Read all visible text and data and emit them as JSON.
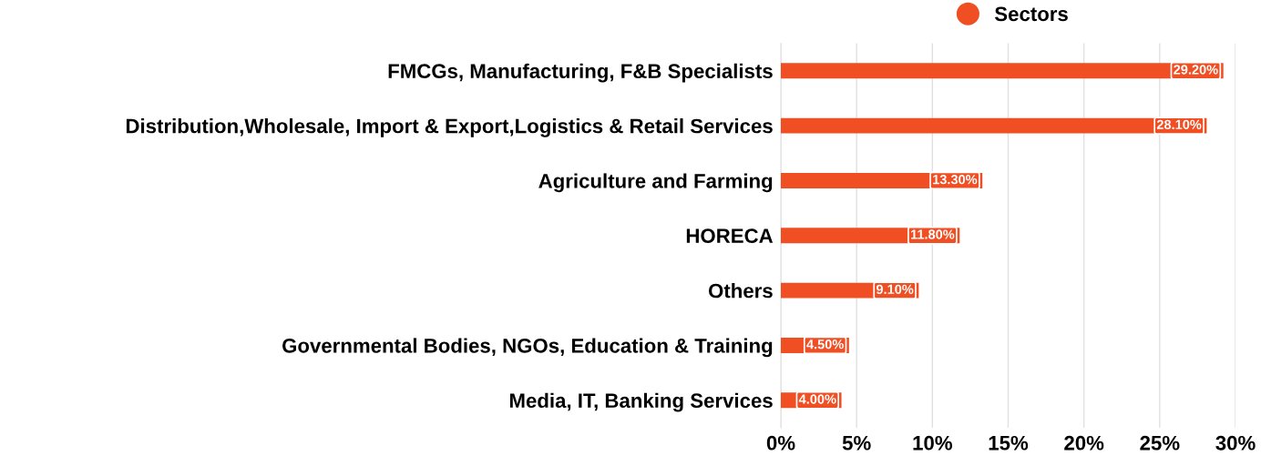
{
  "chart_data": {
    "type": "bar",
    "orientation": "horizontal",
    "categories": [
      "FMCGs, Manufacturing, F&B Specialists",
      "Distribution,Wholesale, Import & Export,Logistics & Retail Services",
      "Agriculture and Farming",
      "HORECA",
      "Others",
      "Governmental Bodies, NGOs, Education & Training",
      "Media, IT, Banking Services"
    ],
    "series": [
      {
        "name": "Sectors",
        "color": "#f04e23",
        "values": [
          29.2,
          28.1,
          13.3,
          11.8,
          9.1,
          4.5,
          4.0
        ],
        "value_labels": [
          "29.20%",
          "28.10%",
          "13.30%",
          "11.80%",
          "9.10%",
          "4.50%",
          "4.00%"
        ]
      }
    ],
    "xlim": [
      0,
      30
    ],
    "xticks": [
      {
        "value": 0,
        "label": "0%"
      },
      {
        "value": 5,
        "label": "5%"
      },
      {
        "value": 10,
        "label": "10%"
      },
      {
        "value": 15,
        "label": "15%"
      },
      {
        "value": 20,
        "label": "20%"
      },
      {
        "value": 25,
        "label": "25%"
      },
      {
        "value": 30,
        "label": "30%"
      }
    ],
    "grid": "x",
    "legend": "top"
  }
}
